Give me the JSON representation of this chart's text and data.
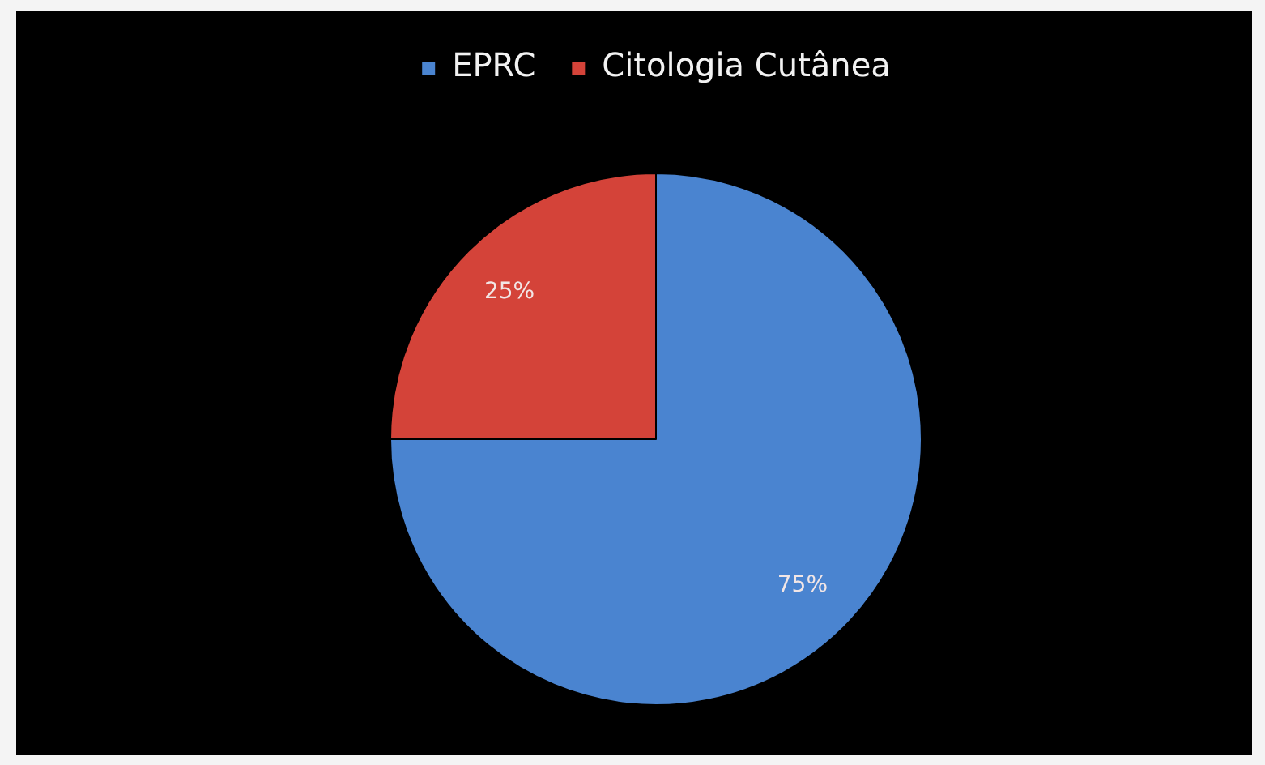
{
  "chart_data": {
    "type": "pie",
    "categories": [
      "EPRC",
      "Citologia Cutânea"
    ],
    "values": [
      75,
      25
    ],
    "colors": [
      "#4a84d0",
      "#d44339"
    ],
    "legend": "top",
    "value_labels": [
      "75%",
      "25%"
    ]
  }
}
